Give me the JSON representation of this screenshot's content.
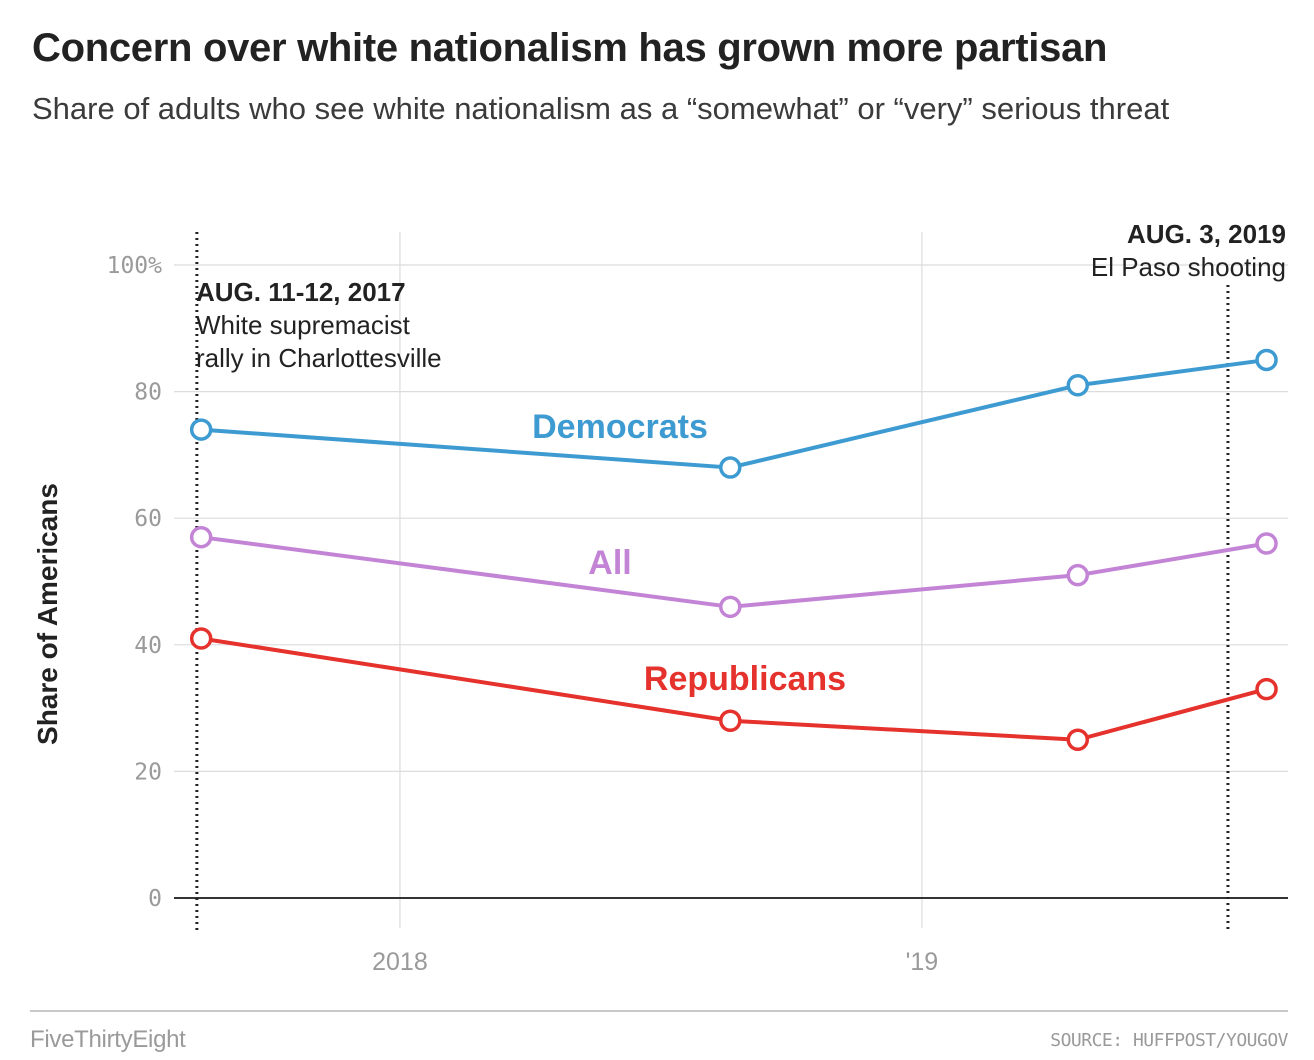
{
  "header": {
    "title": "Concern over white nationalism has grown more partisan",
    "subtitle": "Share of adults who see white nationalism as a “somewhat” or “very” serious threat"
  },
  "footer": {
    "brand": "FiveThirtyEight",
    "source": "SOURCE: HUFFPOST/YOUGOV"
  },
  "chart_data": {
    "type": "line",
    "title": "Concern over white nationalism has grown more partisan",
    "subtitle": "Share of adults who see white nationalism as a “somewhat” or “very” serious threat",
    "ylabel": "Share of Americans",
    "xlabel": "",
    "ylim": [
      0,
      100
    ],
    "y_ticks": [
      0,
      20,
      40,
      60,
      80,
      100
    ],
    "y_tick_labels": [
      "0",
      "20",
      "40",
      "60",
      "80",
      "100%"
    ],
    "x_range": [
      "2017-07-27",
      "2019-09-14"
    ],
    "x_ticks": [
      {
        "date": "2018-01-01",
        "label": "2018"
      },
      {
        "date": "2019-01-01",
        "label": "'19"
      }
    ],
    "grid": true,
    "series": [
      {
        "name": "Democrats",
        "color": "#3d9bd1",
        "points": [
          {
            "x": "2017-08-15",
            "y": 74
          },
          {
            "x": "2018-08-20",
            "y": 68
          },
          {
            "x": "2019-04-20",
            "y": 81
          },
          {
            "x": "2019-08-30",
            "y": 85
          }
        ]
      },
      {
        "name": "All",
        "color": "#c384d6",
        "points": [
          {
            "x": "2017-08-15",
            "y": 57
          },
          {
            "x": "2018-08-20",
            "y": 46
          },
          {
            "x": "2019-04-20",
            "y": 51
          },
          {
            "x": "2019-08-30",
            "y": 56
          }
        ]
      },
      {
        "name": "Republicans",
        "color": "#e5322c",
        "points": [
          {
            "x": "2017-08-15",
            "y": 41
          },
          {
            "x": "2018-08-20",
            "y": 28
          },
          {
            "x": "2019-04-20",
            "y": 25
          },
          {
            "x": "2019-08-30",
            "y": 33
          }
        ]
      }
    ],
    "annotations": [
      {
        "date": "2017-08-12",
        "heading": "AUG. 11-12, 2017",
        "lines": [
          "White supremacist",
          "rally in Charlottesville"
        ],
        "align": "left"
      },
      {
        "date": "2019-08-03",
        "heading": "AUG. 3, 2019",
        "lines": [
          "El Paso shooting"
        ],
        "align": "right"
      }
    ]
  }
}
